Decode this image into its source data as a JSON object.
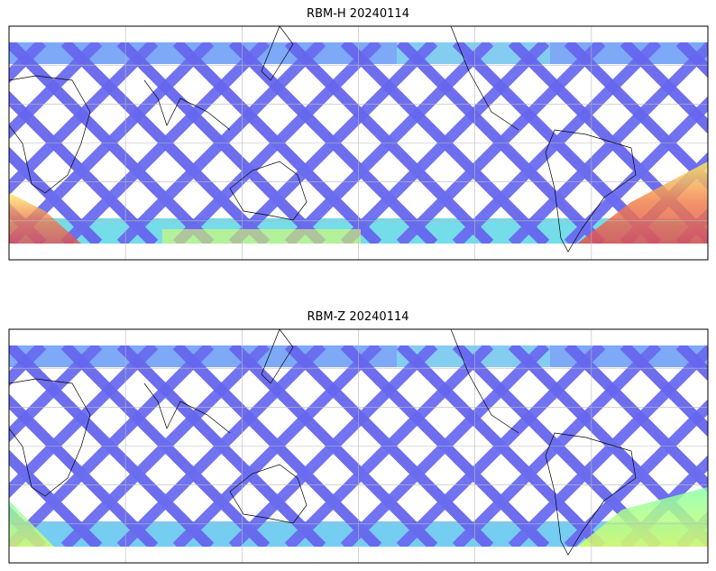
{
  "panels": [
    {
      "title": "RBM-H 20240114"
    },
    {
      "title": "RBM-Z 20240114"
    }
  ]
}
